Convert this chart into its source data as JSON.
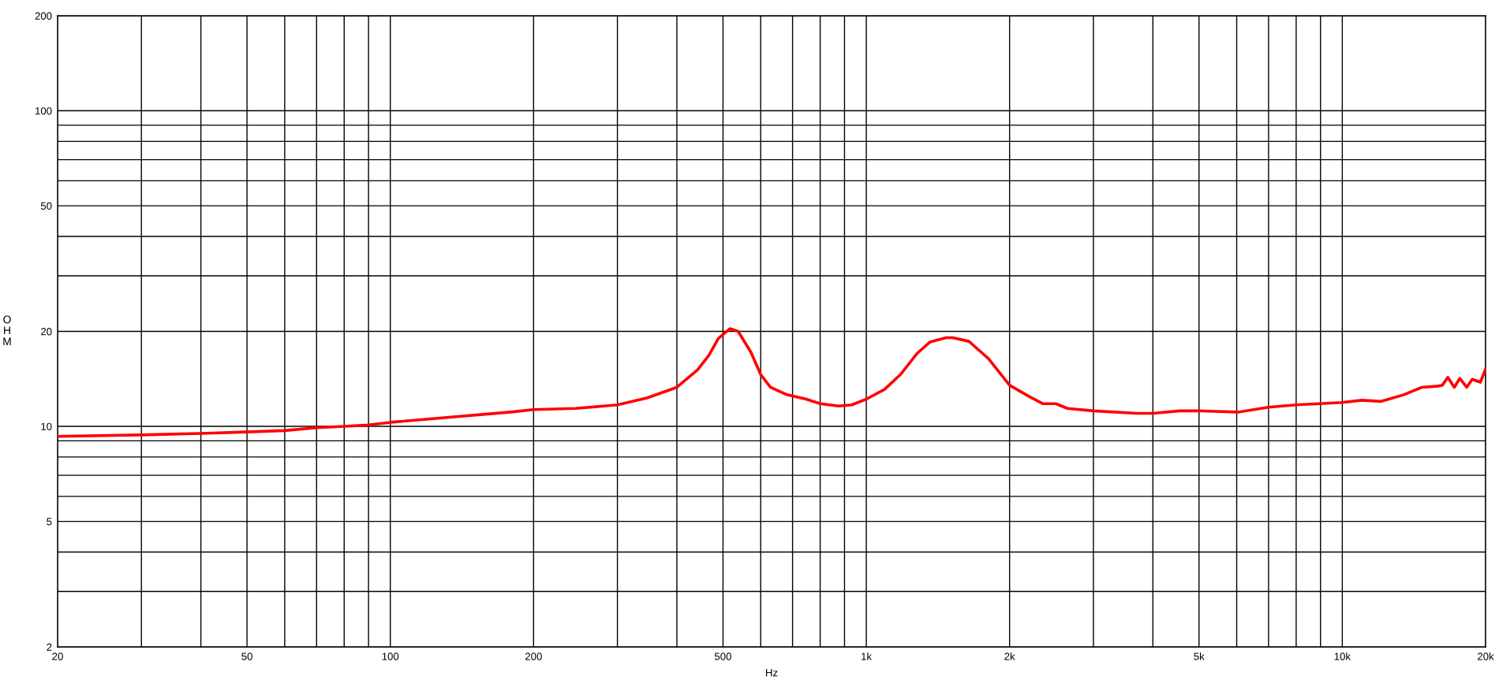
{
  "chart_data": {
    "type": "line",
    "xlabel": "Hz",
    "ylabel": "OHM",
    "log": "xy",
    "grid": true,
    "line_style": "solid",
    "marker": "none",
    "xlim": [
      20,
      20000
    ],
    "ylim": [
      2,
      200
    ],
    "xticks": [
      20,
      {
        "value": 30,
        "label": null
      },
      {
        "value": 40,
        "label": null
      },
      50,
      {
        "value": 60,
        "label": null
      },
      {
        "value": 70,
        "label": null
      },
      {
        "value": 80,
        "label": null
      },
      {
        "value": 90,
        "label": null
      },
      100,
      200,
      {
        "value": 300,
        "label": null
      },
      {
        "value": 400,
        "label": null
      },
      500,
      {
        "value": 600,
        "label": null
      },
      {
        "value": 700,
        "label": null
      },
      {
        "value": 800,
        "label": null
      },
      {
        "value": 900,
        "label": null
      },
      {
        "value": 1000,
        "label": "1k"
      },
      {
        "value": 2000,
        "label": "2k"
      },
      {
        "value": 3000,
        "label": null
      },
      {
        "value": 4000,
        "label": null
      },
      {
        "value": 5000,
        "label": "5k"
      },
      {
        "value": 6000,
        "label": null
      },
      {
        "value": 7000,
        "label": null
      },
      {
        "value": 8000,
        "label": null
      },
      {
        "value": 9000,
        "label": null
      },
      {
        "value": 10000,
        "label": "10k"
      },
      {
        "value": 20000,
        "label": "20k"
      }
    ],
    "yticks": [
      2,
      {
        "value": 3,
        "label": null
      },
      {
        "value": 4,
        "label": null
      },
      5,
      {
        "value": 6,
        "label": null
      },
      {
        "value": 7,
        "label": null
      },
      {
        "value": 8,
        "label": null
      },
      {
        "value": 9,
        "label": null
      },
      10,
      20,
      {
        "value": 30,
        "label": null
      },
      {
        "value": 40,
        "label": null
      },
      50,
      {
        "value": 60,
        "label": null
      },
      {
        "value": 70,
        "label": null
      },
      {
        "value": 80,
        "label": null
      },
      {
        "value": 90,
        "label": null
      },
      100,
      200
    ],
    "x": [
      20,
      30,
      40,
      50,
      60,
      70,
      80,
      90,
      100,
      179,
      200,
      245,
      300,
      346,
      400,
      442,
      467,
      489,
      517,
      538,
      572,
      600,
      629,
      681,
      748,
      800,
      876,
      932,
      1000,
      1092,
      1180,
      1277,
      1360,
      1472,
      1518,
      1643,
      1742,
      1806,
      2000,
      2206,
      2350,
      2502,
      2644,
      3000,
      3707,
      4000,
      4550,
      5000,
      6036,
      7000,
      8000,
      10000,
      10980,
      12070,
      13470,
      14690,
      15770,
      16220,
      16660,
      17190,
      17660,
      18250,
      18750,
      19500,
      20000
    ],
    "series": [
      {
        "color": "#ff0000",
        "values": [
          9.3,
          9.4,
          9.5,
          9.6,
          9.7,
          9.9,
          10.0,
          10.1,
          10.3,
          11.1,
          11.3,
          11.4,
          11.7,
          12.3,
          13.3,
          15.1,
          16.8,
          19.0,
          20.4,
          20.0,
          17.2,
          14.6,
          13.3,
          12.6,
          12.2,
          11.8,
          11.6,
          11.7,
          12.2,
          13.1,
          14.6,
          17.0,
          18.5,
          19.1,
          19.1,
          18.6,
          17.2,
          16.4,
          13.5,
          12.4,
          11.8,
          11.8,
          11.4,
          11.2,
          11.0,
          11.0,
          11.2,
          11.2,
          11.1,
          11.5,
          11.7,
          11.9,
          12.1,
          12.0,
          12.6,
          13.3,
          13.4,
          13.5,
          14.3,
          13.3,
          14.2,
          13.3,
          14.1,
          13.8,
          15.2
        ]
      }
    ]
  }
}
